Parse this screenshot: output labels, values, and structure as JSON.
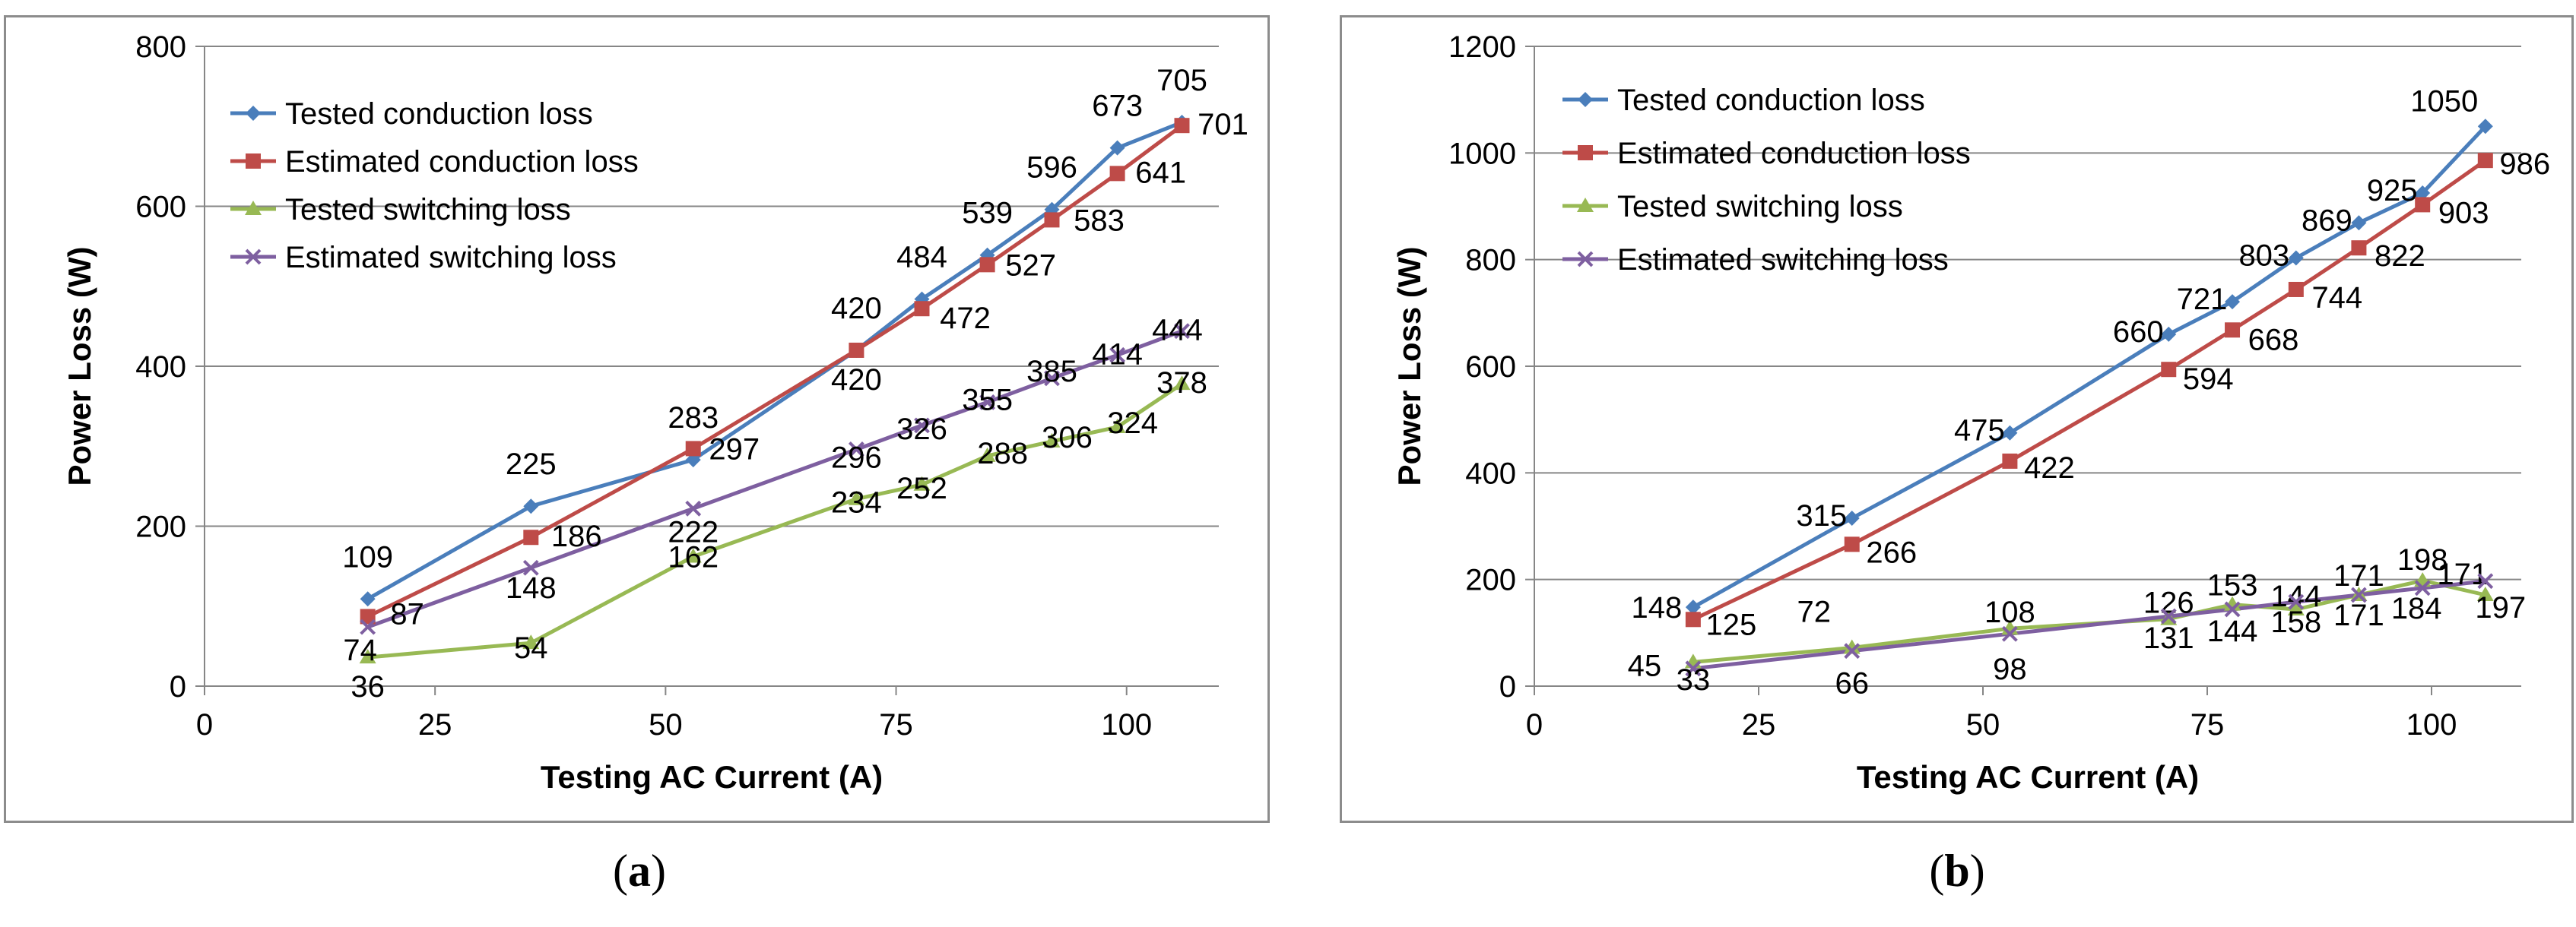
{
  "colors": {
    "tested_conduction": "#4a7ebb",
    "estimated_conduction": "#be4b48",
    "tested_switching": "#98b954",
    "estimated_switching": "#7e5fa0",
    "gridline": "#868686",
    "axis": "#868686",
    "text": "#000000"
  },
  "captions": {
    "a_letter": "a",
    "b_letter": "b",
    "open": "(",
    "close": ")"
  },
  "chart_data": [
    {
      "id": "a",
      "type": "line",
      "xlabel": "Testing AC Current (A)",
      "ylabel": "Power Loss (W)",
      "xlim": [
        0,
        110
      ],
      "ylim": [
        0,
        800
      ],
      "xticks": [
        "0",
        "25",
        "50",
        "75",
        "100"
      ],
      "yticks": [
        "0",
        "200",
        "400",
        "600",
        "800"
      ],
      "grid": true,
      "legend_position": "top-left",
      "series": [
        {
          "name": "Tested conduction loss",
          "marker": "diamond",
          "x": [
            17.7,
            35.4,
            53,
            70.7,
            77.8,
            84.9,
            91.9,
            99,
            106
          ],
          "values": [
            109,
            225,
            283,
            420,
            484,
            539,
            596,
            673,
            705
          ],
          "labels": [
            "109",
            "225",
            "283",
            "420",
            "484",
            "539",
            "596",
            "673",
            "705"
          ]
        },
        {
          "name": "Estimated conduction loss",
          "marker": "square",
          "x": [
            17.7,
            35.4,
            53,
            70.7,
            77.8,
            84.9,
            91.9,
            99,
            106
          ],
          "values": [
            87,
            186,
            297,
            420,
            472,
            527,
            583,
            641,
            701
          ],
          "labels": [
            "87",
            "186",
            "297",
            "420",
            "472",
            "527",
            "583",
            "641",
            "701"
          ]
        },
        {
          "name": "Tested switching loss",
          "marker": "triangle",
          "x": [
            17.7,
            35.4,
            53,
            70.7,
            77.8,
            84.9,
            91.9,
            99,
            106
          ],
          "values": [
            36,
            54,
            162,
            234,
            252,
            288,
            306,
            324,
            378
          ],
          "labels": [
            "36",
            "54",
            "162",
            "234",
            "252",
            "288",
            "306",
            "324",
            "378"
          ]
        },
        {
          "name": "Estimated switching loss",
          "marker": "x",
          "x": [
            17.7,
            35.4,
            53,
            70.7,
            77.8,
            84.9,
            91.9,
            99,
            106
          ],
          "values": [
            74,
            148,
            222,
            296,
            326,
            355,
            385,
            414,
            444
          ],
          "labels": [
            "74",
            "148",
            "222",
            "296",
            "326",
            "355",
            "385",
            "414",
            "444"
          ]
        }
      ]
    },
    {
      "id": "b",
      "type": "line",
      "xlabel": "Testing AC Current (A)",
      "ylabel": "Power Loss (W)",
      "xlim": [
        0,
        110
      ],
      "ylim": [
        0,
        1200
      ],
      "xticks": [
        "0",
        "25",
        "50",
        "75",
        "100"
      ],
      "yticks": [
        "0",
        "200",
        "400",
        "600",
        "800",
        "1000",
        "1200"
      ],
      "grid": true,
      "legend_position": "top-left",
      "series": [
        {
          "name": "Tested conduction loss",
          "marker": "diamond",
          "x": [
            17.7,
            35.4,
            53,
            70.7,
            77.8,
            84.9,
            91.9,
            99,
            106
          ],
          "values": [
            148,
            315,
            475,
            660,
            721,
            803,
            869,
            925,
            1050
          ],
          "labels": [
            "148",
            "315",
            "475",
            "660",
            "721",
            "803",
            "869",
            "925",
            "1050"
          ]
        },
        {
          "name": "Estimated conduction loss",
          "marker": "square",
          "x": [
            17.7,
            35.4,
            53,
            70.7,
            77.8,
            84.9,
            91.9,
            99,
            106
          ],
          "values": [
            125,
            266,
            422,
            594,
            668,
            744,
            822,
            903,
            986
          ],
          "labels": [
            "125",
            "266",
            "422",
            "594",
            "668",
            "744",
            "822",
            "903",
            "986"
          ]
        },
        {
          "name": "Tested switching loss",
          "marker": "triangle",
          "x": [
            17.7,
            35.4,
            53,
            70.7,
            77.8,
            84.9,
            91.9,
            99,
            106
          ],
          "values": [
            45,
            72,
            108,
            126,
            153,
            144,
            171,
            198,
            171
          ],
          "labels": [
            "45",
            "72",
            "108",
            "126",
            "153",
            "144",
            "171",
            "198",
            "171"
          ]
        },
        {
          "name": "Estimated switching loss",
          "marker": "x",
          "x": [
            17.7,
            35.4,
            53,
            70.7,
            77.8,
            84.9,
            91.9,
            99,
            106
          ],
          "values": [
            33,
            66,
            98,
            131,
            144,
            158,
            171,
            184,
            197
          ],
          "labels": [
            "33",
            "66",
            "98",
            "131",
            "144",
            "158",
            "171",
            "184",
            "197"
          ]
        }
      ]
    }
  ]
}
